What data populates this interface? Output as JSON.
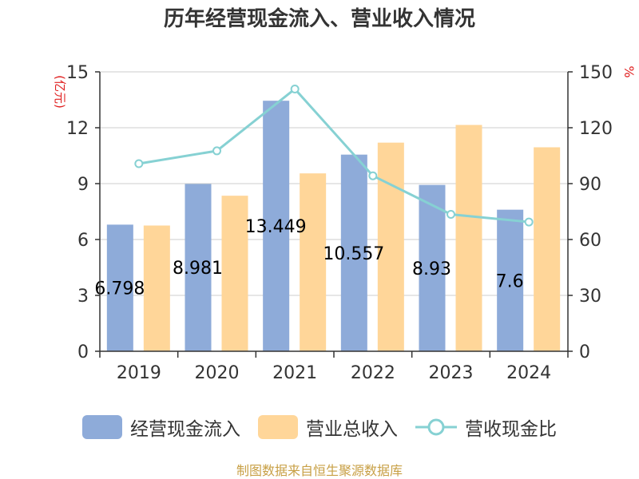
{
  "chart_data": {
    "type": "bar",
    "title": "历年经营现金流入、营业收入情况",
    "categories": [
      "2019",
      "2020",
      "2021",
      "2022",
      "2023",
      "2024"
    ],
    "series": [
      {
        "name": "经营现金流入",
        "type": "bar",
        "axis": "left",
        "color": "#8eabd9",
        "values": [
          6.798,
          8.981,
          13.449,
          10.557,
          8.93,
          7.6
        ],
        "labels": [
          "6.798",
          "8.981",
          "13.449",
          "10.557",
          "8.93",
          "7.6"
        ]
      },
      {
        "name": "营业总收入",
        "type": "bar",
        "axis": "left",
        "color": "#ffd699",
        "values": [
          6.75,
          8.35,
          9.55,
          11.2,
          12.15,
          10.95
        ]
      },
      {
        "name": "营收现金比",
        "type": "line",
        "axis": "right",
        "color": "#86d1d3",
        "values": [
          100.7,
          107.6,
          140.8,
          94.2,
          73.5,
          69.4
        ]
      }
    ],
    "ylabel": "(亿元)",
    "ylabel_right": "%",
    "ylim": [
      0,
      15
    ],
    "yticks": [
      "0",
      "3",
      "6",
      "9",
      "12",
      "15"
    ],
    "ylim_right": [
      0,
      150
    ],
    "yticks_right": [
      "0",
      "30",
      "60",
      "90",
      "120",
      "150"
    ],
    "grid": true,
    "legend_position": "bottom",
    "source": "制图数据来自恒生聚源数据库"
  }
}
